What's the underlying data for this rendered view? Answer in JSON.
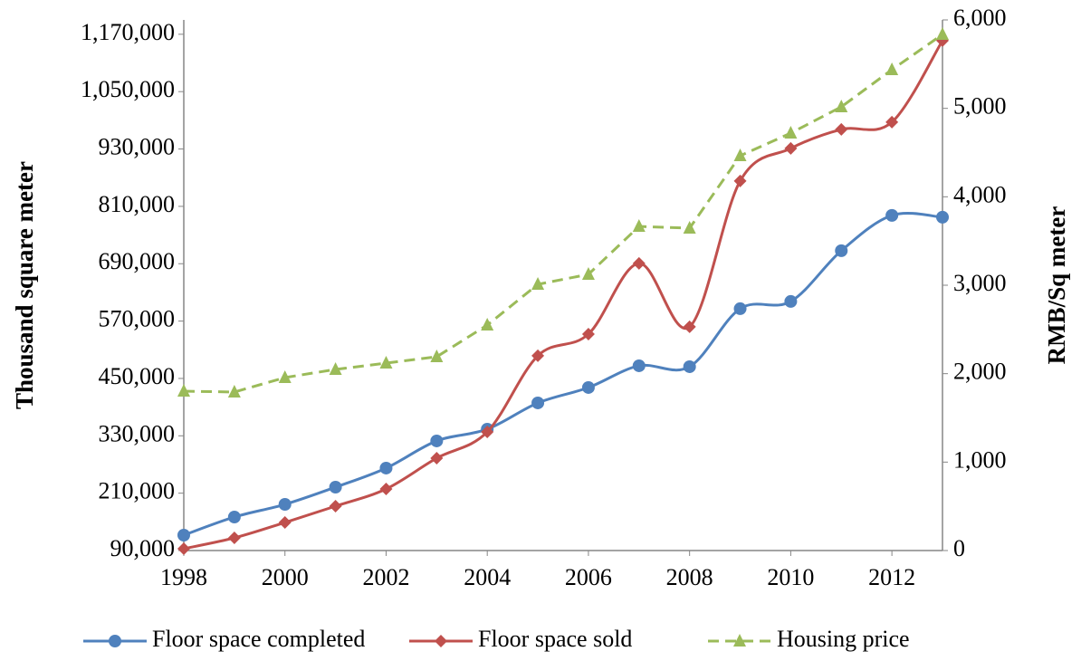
{
  "chart_data": {
    "type": "line",
    "y_label": "Thousand square meter",
    "y2_label": "RMB/Sq meter",
    "x": [
      1998,
      1999,
      2000,
      2001,
      2002,
      2003,
      2004,
      2005,
      2006,
      2007,
      2008,
      2009,
      2010,
      2011,
      2012,
      2013
    ],
    "xlim": [
      1998,
      2013
    ],
    "xticks": [
      1998,
      2000,
      2002,
      2004,
      2006,
      2008,
      2010,
      2012
    ],
    "ylim": [
      90000,
      1200000
    ],
    "yticks": [
      {
        "value": 90000,
        "label": "90,000"
      },
      {
        "value": 210000,
        "label": "210,000"
      },
      {
        "value": 330000,
        "label": "330,000"
      },
      {
        "value": 450000,
        "label": "450,000"
      },
      {
        "value": 570000,
        "label": "570,000"
      },
      {
        "value": 690000,
        "label": "690,000"
      },
      {
        "value": 810000,
        "label": "810,000"
      },
      {
        "value": 930000,
        "label": "930,000"
      },
      {
        "value": 1050000,
        "label": "1,050,000"
      },
      {
        "value": 1170000,
        "label": "1,170,000"
      }
    ],
    "y2lim": [
      0,
      6000
    ],
    "y2ticks": [
      0,
      {
        "value": 1000,
        "label": "1,000"
      },
      {
        "value": 2000,
        "label": "2,000"
      },
      {
        "value": 3000,
        "label": "3,000"
      },
      {
        "value": 4000,
        "label": "4,000"
      },
      {
        "value": 5000,
        "label": "5,000"
      },
      {
        "value": 6000,
        "label": "6,000"
      }
    ],
    "legend": "bottom",
    "series": [
      {
        "name": "Floor space completed",
        "color": "#4f81bd",
        "marker": "circle",
        "smooth": true,
        "values": [
          122200,
          160100,
          186600,
          222600,
          262400,
          319300,
          343900,
          398800,
          431000,
          476500,
          474600,
          595900,
          611100,
          717200,
          791100,
          787300
        ]
      },
      {
        "name": "Floor space sold",
        "color": "#c0504d",
        "marker": "diamond",
        "smooth": true,
        "values": [
          93800,
          116500,
          148700,
          182800,
          218800,
          283300,
          338200,
          497400,
          542800,
          690600,
          558000,
          863000,
          931200,
          971000,
          986200,
          1156700
        ]
      },
      {
        "name": "Housing price",
        "color": "#9bbb59",
        "marker": "triangle",
        "dashed": true,
        "axis": "y2",
        "values": [
          1802,
          1792,
          1956,
          2048,
          2119,
          2191,
          2549,
          3010,
          3123,
          3665,
          3645,
          4464,
          4720,
          5017,
          5437,
          5836
        ]
      }
    ]
  }
}
